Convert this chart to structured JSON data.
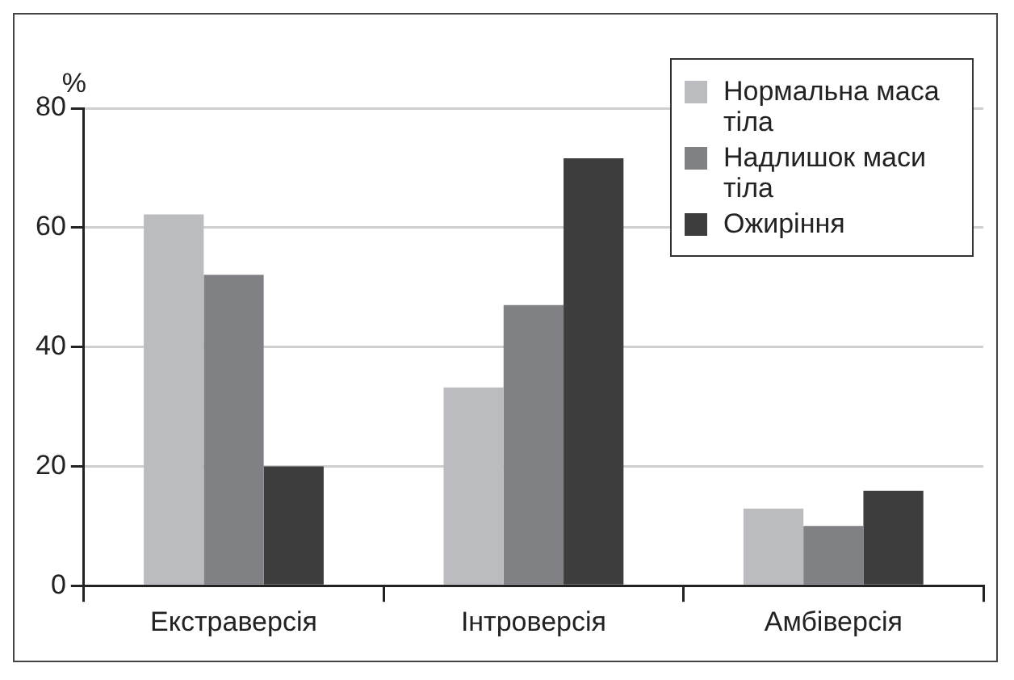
{
  "chart_data": {
    "type": "bar",
    "ylabel": "%",
    "categories": [
      "Екстраверсія",
      "Інтроверсія",
      "Амбіверсія"
    ],
    "series": [
      {
        "name": "Нормальна маса тіла",
        "color": "#bbbcc0",
        "values": [
          62.2,
          33.2,
          12.9
        ]
      },
      {
        "name": "Надлишок маси тіла",
        "color": "#808185",
        "values": [
          52.1,
          47,
          10
        ]
      },
      {
        "name": "Ожиріння",
        "color": "#3d3d3d",
        "values": [
          20,
          71.6,
          15.9
        ]
      }
    ],
    "ylim": [
      0,
      80
    ],
    "yticks": [
      0,
      20,
      40,
      60,
      80
    ],
    "grid": "y",
    "legend": "top right"
  }
}
